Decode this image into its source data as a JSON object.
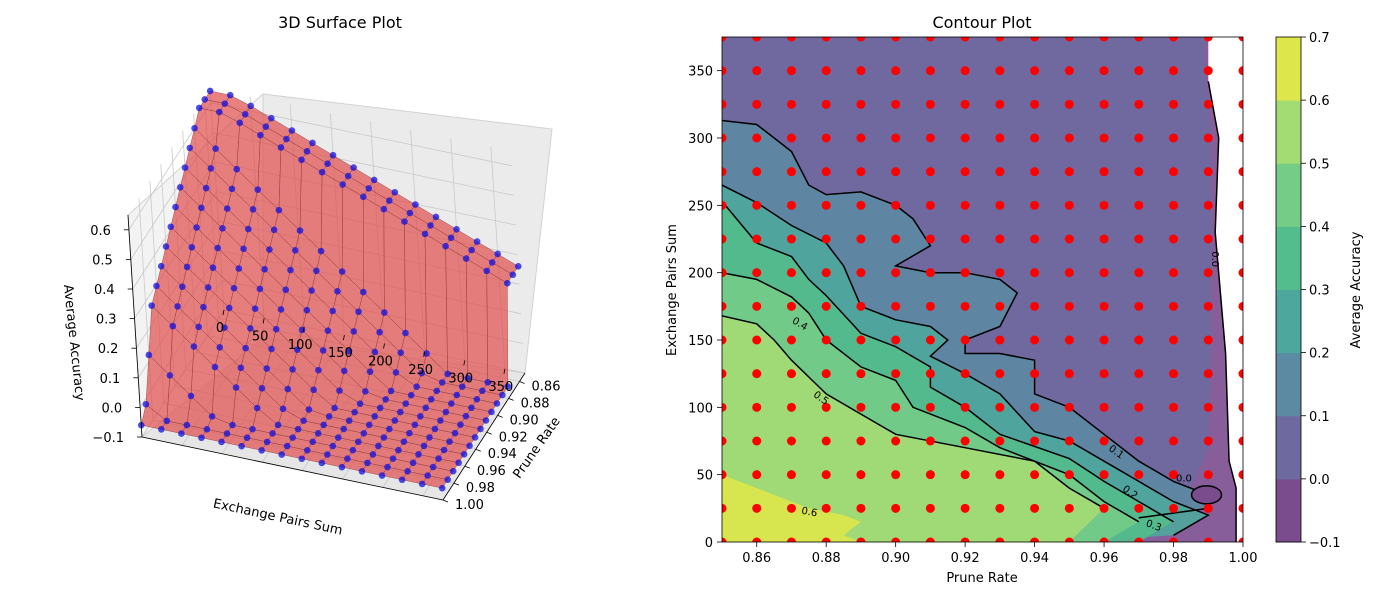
{
  "chart_data": [
    {
      "type": "surface3d",
      "title": "3D Surface Plot",
      "xlabel": "Exchange Pairs Sum",
      "ylabel": "Prune Rate",
      "zlabel": "Average Accuracy",
      "x_ticks": [
        "0",
        "50",
        "100",
        "150",
        "200",
        "250",
        "300",
        "350"
      ],
      "y_ticks": [
        "0.86",
        "0.88",
        "0.90",
        "0.92",
        "0.94",
        "0.96",
        "0.98",
        "1.00"
      ],
      "z_ticks": [
        "−0.1",
        "0.0",
        "0.1",
        "0.2",
        "0.3",
        "0.4",
        "0.5",
        "0.6"
      ],
      "xlim": [
        0,
        375
      ],
      "ylim": [
        0.85,
        1.0
      ],
      "zlim": [
        -0.1,
        0.65
      ],
      "x": [
        0,
        25,
        50,
        75,
        100,
        125,
        150,
        175,
        200,
        225,
        250,
        275,
        300,
        325,
        350,
        375
      ],
      "y": [
        0.85,
        0.86,
        0.87,
        0.88,
        0.89,
        0.9,
        0.91,
        0.92,
        0.93,
        0.94,
        0.95,
        0.96,
        0.97,
        0.98,
        0.99,
        1.0
      ],
      "series": [
        {
          "kind": "surface",
          "color": "#e05050",
          "edge": "#8b3a3a"
        },
        {
          "kind": "scatter",
          "color": "#1010e0"
        }
      ],
      "grid": true
    },
    {
      "type": "contour",
      "title": "Contour Plot",
      "xlabel": "Prune Rate",
      "ylabel": "Exchange Pairs Sum",
      "x_ticks": [
        "0.86",
        "0.88",
        "0.90",
        "0.92",
        "0.94",
        "0.96",
        "0.98",
        "1.00"
      ],
      "y_ticks": [
        "0",
        "50",
        "100",
        "150",
        "200",
        "250",
        "300",
        "350"
      ],
      "xlim": [
        0.85,
        1.0
      ],
      "ylim": [
        0,
        375
      ],
      "x": [
        0.85,
        0.86,
        0.87,
        0.88,
        0.89,
        0.9,
        0.91,
        0.92,
        0.93,
        0.94,
        0.95,
        0.96,
        0.97,
        0.98,
        0.99,
        1.0
      ],
      "y": [
        0,
        25,
        50,
        75,
        100,
        125,
        150,
        175,
        200,
        225,
        250,
        275,
        300,
        325,
        350,
        375
      ],
      "levels": [
        -0.1,
        0.0,
        0.1,
        0.2,
        0.3,
        0.4,
        0.5,
        0.6,
        0.7
      ],
      "level_colors": [
        "#7a4c8e",
        "#6e6aa0",
        "#5c8aa2",
        "#4ea79c",
        "#53bd8d",
        "#74cc86",
        "#a4dc74",
        "#dde64a"
      ],
      "contour_labels": [
        "0.0",
        "0.1",
        "0.2",
        "0.3",
        "0.4",
        "0.5",
        "0.6",
        "0.0"
      ],
      "point_color": "#ff0000",
      "colorbar": {
        "label": "Average Accuracy",
        "ticks": [
          "−0.1",
          "0.0",
          "0.1",
          "0.2",
          "0.3",
          "0.4",
          "0.5",
          "0.6",
          "0.7"
        ]
      }
    }
  ]
}
